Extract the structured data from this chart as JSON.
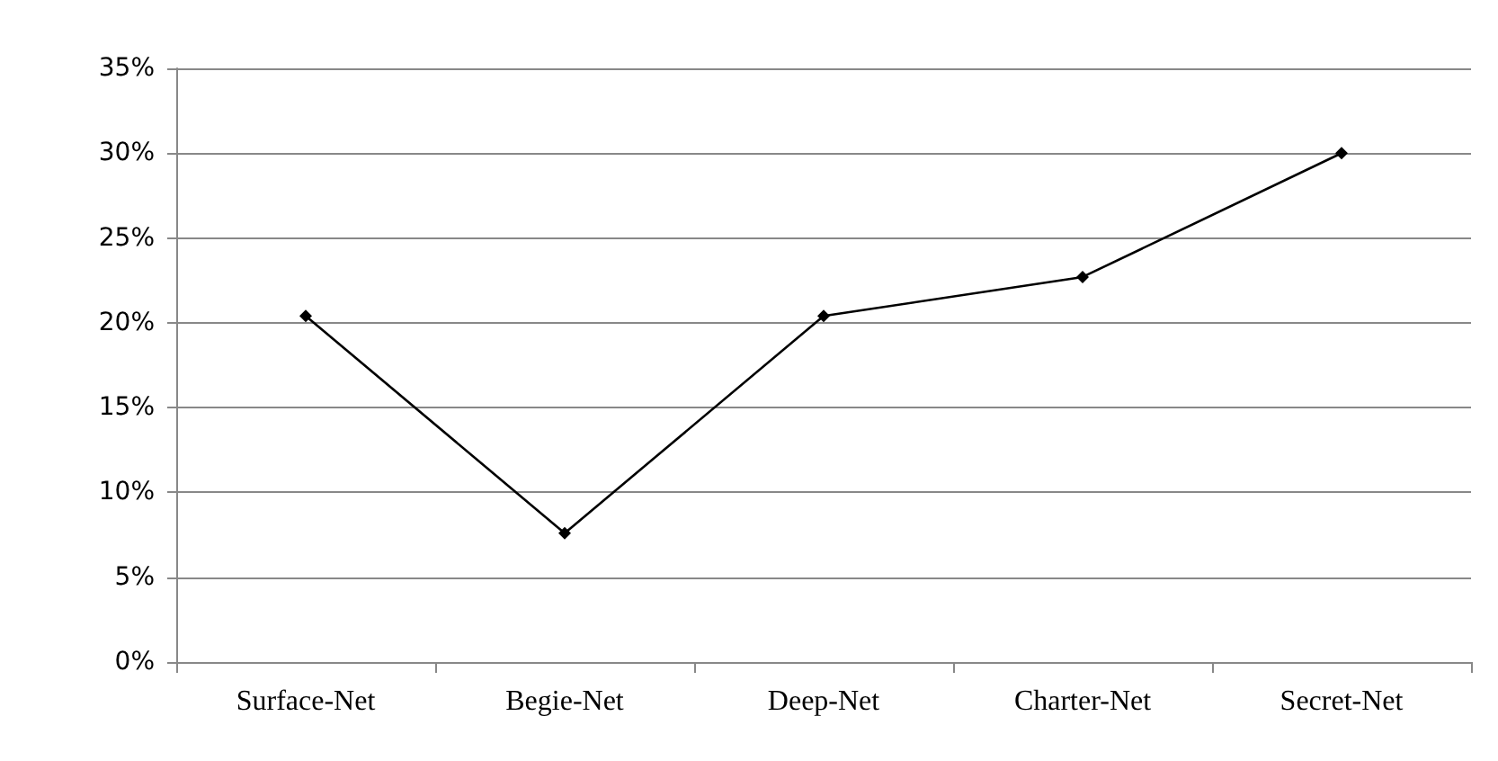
{
  "chart_data": {
    "type": "line",
    "categories": [
      "Surface-Net",
      "Begie-Net",
      "Deep-Net",
      "Charter-Net",
      "Secret-Net"
    ],
    "series": [
      {
        "color": "#000000",
        "values": [
          20.4,
          7.6,
          20.4,
          22.7,
          30
        ]
      }
    ],
    "ylim": [
      0,
      35
    ],
    "yticks": [
      {
        "value": 0,
        "label": "0%"
      },
      {
        "value": 5,
        "label": "5%"
      },
      {
        "value": 10,
        "label": "10%"
      },
      {
        "value": 15,
        "label": "15%"
      },
      {
        "value": 20,
        "label": "20%"
      },
      {
        "value": 25,
        "label": "25%"
      },
      {
        "value": 30,
        "label": "30%"
      },
      {
        "value": 35,
        "label": "35%"
      }
    ],
    "grid": "y",
    "marker": "diamond",
    "line_style": "solid"
  }
}
